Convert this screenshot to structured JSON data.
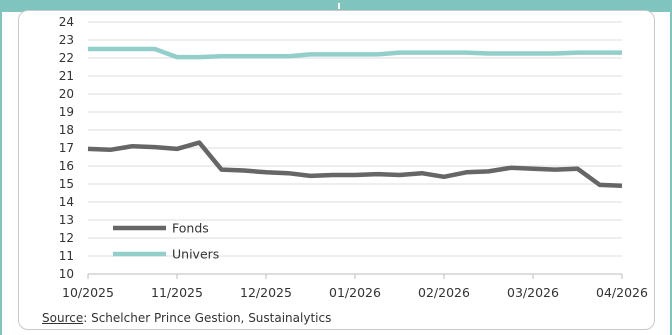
{
  "chart_data": {
    "type": "line",
    "title": "",
    "xlabel": "",
    "ylabel": "",
    "ylim": [
      10,
      24
    ],
    "y_ticks": [
      "10",
      "11",
      "12",
      "13",
      "14",
      "15",
      "16",
      "17",
      "18",
      "19",
      "20",
      "21",
      "22",
      "23",
      "24"
    ],
    "x_tick_labels": [
      "10/2025",
      "11/2025",
      "12/2025",
      "01/2026",
      "02/2026",
      "03/2026",
      "04/2026"
    ],
    "x": [
      "10/2025",
      "",
      "",
      "",
      "11/2025",
      "",
      "",
      "",
      "12/2025",
      "",
      "",
      "",
      "01/2026",
      "",
      "",
      "",
      "02/2026",
      "",
      "",
      "",
      "03/2026",
      "",
      "",
      "",
      "04/2026"
    ],
    "grid": true,
    "legend_position": "lower-left",
    "series": [
      {
        "name": "Fonds",
        "color": "#666666",
        "values": [
          16.95,
          16.9,
          17.1,
          17.05,
          16.95,
          17.3,
          15.8,
          15.75,
          15.65,
          15.6,
          15.45,
          15.5,
          15.5,
          15.55,
          15.5,
          15.6,
          15.4,
          15.65,
          15.7,
          15.9,
          15.85,
          15.8,
          15.85,
          14.95,
          14.9
        ]
      },
      {
        "name": "Univers",
        "color": "#93cfca",
        "values": [
          22.5,
          22.5,
          22.5,
          22.5,
          22.05,
          22.05,
          22.1,
          22.1,
          22.1,
          22.1,
          22.2,
          22.2,
          22.2,
          22.2,
          22.3,
          22.3,
          22.3,
          22.3,
          22.25,
          22.25,
          22.25,
          22.25,
          22.3,
          22.3,
          22.3
        ]
      }
    ]
  },
  "footer": {
    "source_label": "Source",
    "source_text": ": Schelcher Prince Gestion, Sustainalytics"
  }
}
